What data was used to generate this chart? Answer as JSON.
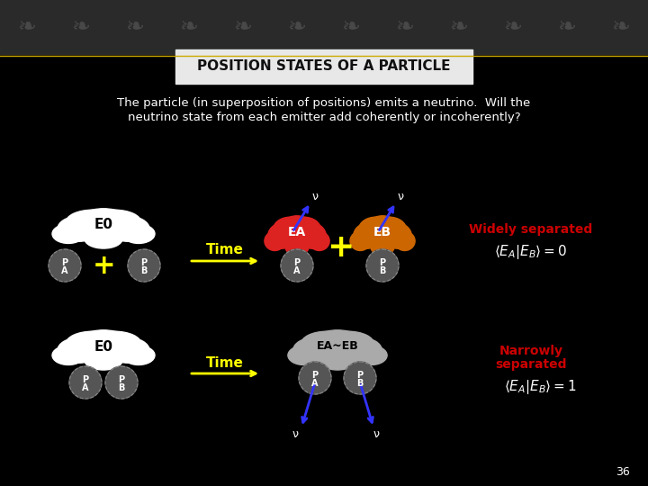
{
  "title": "POSITION STATES OF A PARTICLE",
  "subtitle1": "The particle (in superposition of positions) emits a neutrino.  Will the",
  "subtitle2": "neutrino state from each emitter add coherently or incoherently?",
  "bg_color": "#000000",
  "title_bg": "#e8e8e8",
  "title_color": "#111111",
  "text_color": "#ffffff",
  "yellow_color": "#ffff00",
  "red_color": "#cc0000",
  "orange_color": "#cc6600",
  "blue_arrow_color": "#3333ff",
  "gray_particle": "#888888",
  "white_cloud": "#ffffff",
  "gray_cloud": "#aaaaaa",
  "page_number": "36"
}
